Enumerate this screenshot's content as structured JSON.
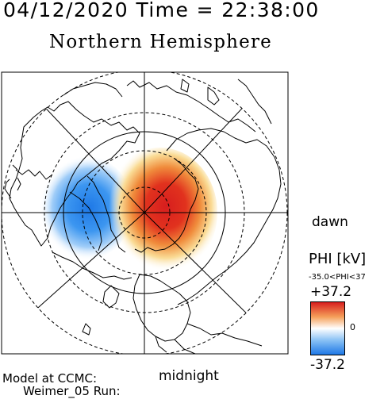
{
  "header": {
    "date_time": "04/12/2020 Time = 22:38:00",
    "title": "Northern Hemisphere"
  },
  "map": {
    "hemisphere": "Northern",
    "projection": "polar-stereographic",
    "grid": "dashed latitude circles, solid longitude spokes",
    "feature": "continent-outlines",
    "orientation": {
      "right": "dawn",
      "bottom": "midnight"
    },
    "potential_pattern": {
      "dawn_cell_sign": "positive",
      "dusk_cell_sign": "negative"
    }
  },
  "colorbar": {
    "title": "PHI [kV]",
    "range_text": "-35.0<PHI<37",
    "max_label": "+37.2",
    "min_label": "-37.2",
    "zero_label": "0",
    "max_value": 37.2,
    "min_value": -37.2,
    "colors": {
      "max": "#d71e1e",
      "mid": "#ffffff",
      "min": "#1e78e6"
    }
  },
  "footer": {
    "model_label": "Model at CCMC:",
    "run_label": "Weimer_05 Run:"
  }
}
